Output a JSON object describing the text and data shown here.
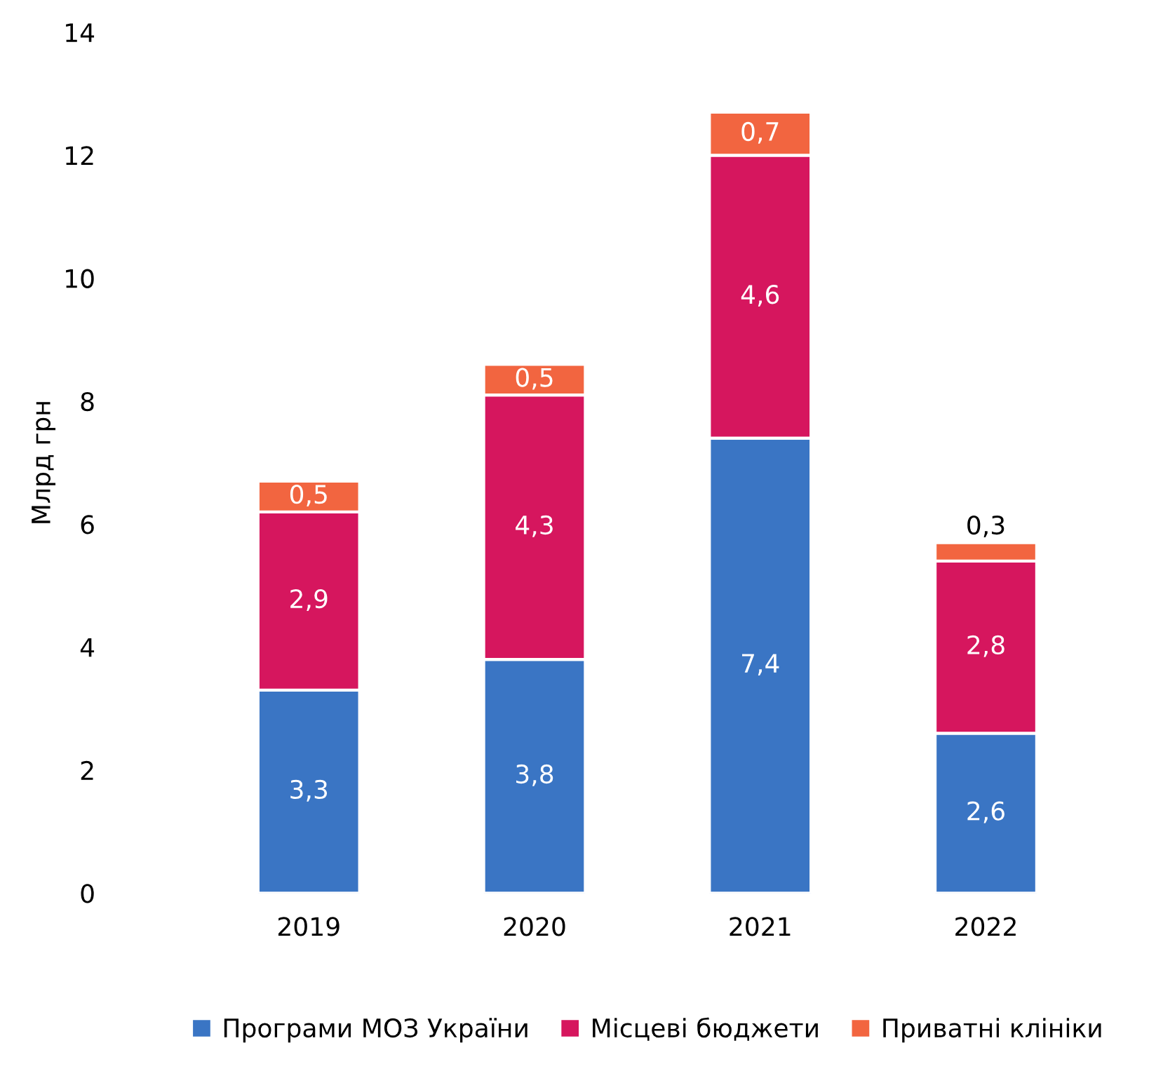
{
  "chart_data": {
    "type": "bar",
    "stacked": true,
    "ylabel": "Млрд грн",
    "categories": [
      "2019",
      "2020",
      "2021",
      "2022"
    ],
    "series": [
      {
        "name": "Програми МОЗ України",
        "color": "#3a75c4",
        "values": [
          3.3,
          3.8,
          7.4,
          2.6
        ],
        "value_labels": [
          "3,3",
          "3,8",
          "7,4",
          "2,6"
        ]
      },
      {
        "name": "Місцеві бюджети",
        "color": "#d6165e",
        "values": [
          2.9,
          4.3,
          4.6,
          2.8
        ],
        "value_labels": [
          "2,9",
          "4,3",
          "4,6",
          "2,8"
        ]
      },
      {
        "name": "Приватні клініки",
        "color": "#f26540",
        "values": [
          0.5,
          0.5,
          0.7,
          0.3
        ],
        "value_labels": [
          "0,5",
          "0,5",
          "0,7",
          "0,3"
        ]
      }
    ],
    "ylim": [
      0,
      14
    ],
    "yticks": [
      0,
      2,
      4,
      6,
      8,
      10,
      12,
      14
    ],
    "grid": false,
    "legend": "bottom"
  }
}
